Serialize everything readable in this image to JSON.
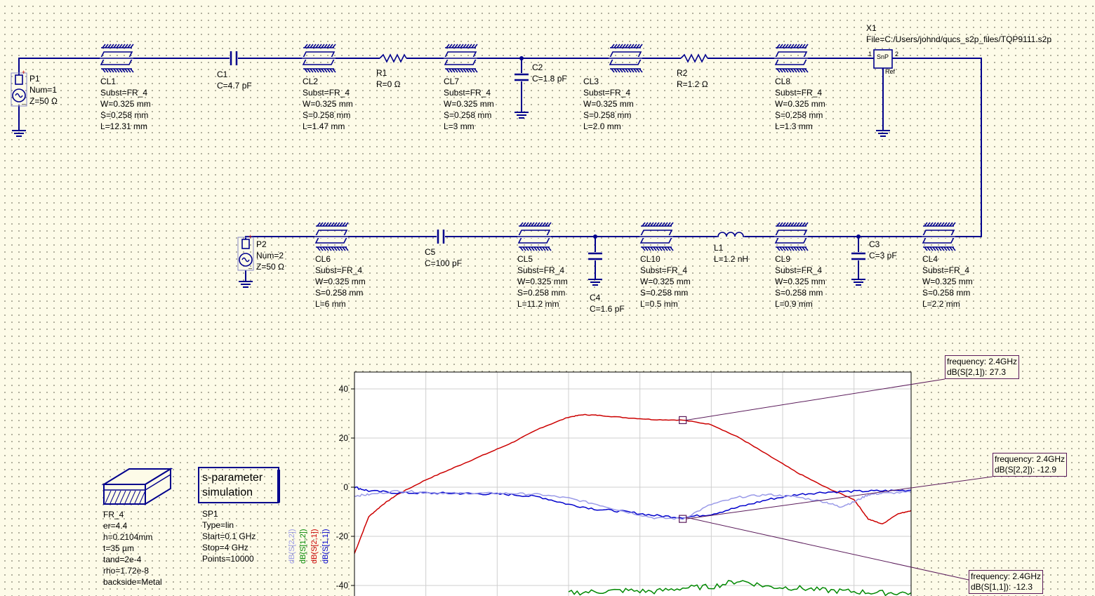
{
  "components": {
    "P1": {
      "name": "P1",
      "props": [
        "Num=1",
        "Z=50 Ω"
      ]
    },
    "CL1": {
      "name": "CL1",
      "props": [
        "Subst=FR_4",
        "W=0.325 mm",
        "S=0.258 mm",
        "L=12.31 mm"
      ]
    },
    "C1": {
      "name": "C1",
      "props": [
        "C=4.7 pF"
      ]
    },
    "CL2": {
      "name": "CL2",
      "props": [
        "Subst=FR_4",
        "W=0.325 mm",
        "S=0.258 mm",
        "L=1.47 mm"
      ]
    },
    "R1": {
      "name": "R1",
      "props": [
        "R=0  Ω"
      ]
    },
    "CL7": {
      "name": "CL7",
      "props": [
        "Subst=FR_4",
        "W=0.325 mm",
        "S=0.258 mm",
        "L=3 mm"
      ]
    },
    "C2": {
      "name": "C2",
      "props": [
        "C=1.8 pF"
      ]
    },
    "CL3": {
      "name": "CL3",
      "props": [
        "Subst=FR_4",
        "W=0.325 mm",
        "S=0.258 mm",
        "L=2.0 mm"
      ]
    },
    "R2": {
      "name": "R2",
      "props": [
        "R=1.2  Ω"
      ]
    },
    "CL8": {
      "name": "CL8",
      "props": [
        "Subst=FR_4",
        "W=0.325 mm",
        "S=0.258 mm",
        "L=1.3 mm"
      ]
    },
    "X1": {
      "name": "X1",
      "props": [
        "File=C:/Users/johnd/qucs_s2p_files/TQP9111.s2p"
      ],
      "symbol": "SnP",
      "ref": "Ref",
      "pin1": "1",
      "pin2": "2"
    },
    "P2": {
      "name": "P2",
      "props": [
        "Num=2",
        "Z=50 Ω"
      ]
    },
    "CL6": {
      "name": "CL6",
      "props": [
        "Subst=FR_4",
        "W=0.325 mm",
        "S=0.258 mm",
        "L=6 mm"
      ]
    },
    "C5": {
      "name": "C5",
      "props": [
        "C=100 pF"
      ]
    },
    "CL5": {
      "name": "CL5",
      "props": [
        "Subst=FR_4",
        "W=0.325 mm",
        "S=0.258 mm",
        "L=11.2 mm"
      ]
    },
    "C4": {
      "name": "C4",
      "props": [
        "C=1.6 pF"
      ]
    },
    "CL10": {
      "name": "CL10",
      "props": [
        "Subst=FR_4",
        "W=0.325 mm",
        "S=0.258 mm",
        "L=0.5 mm"
      ]
    },
    "L1": {
      "name": "L1",
      "props": [
        "L=1.2 nH"
      ]
    },
    "CL9": {
      "name": "CL9",
      "props": [
        "Subst=FR_4",
        "W=0.325 mm",
        "S=0.258 mm",
        "L=0.9 mm"
      ]
    },
    "C3": {
      "name": "C3",
      "props": [
        "C=3 pF"
      ]
    },
    "CL4": {
      "name": "CL4",
      "props": [
        "Subst=FR_4",
        "W=0.325 mm",
        "S=0.258 mm",
        "L=2.2 mm"
      ]
    },
    "FR_4": {
      "name": "FR_4",
      "props": [
        "er=4.4",
        "h=0.2104mm",
        "t=35 µm",
        "tand=2e-4",
        "rho=1.72e-8",
        "backside=Metal"
      ]
    },
    "SP1": {
      "name": "SP1",
      "props": [
        "Type=lin",
        "Start=0.1 GHz",
        "Stop=4 GHz",
        "Points=10000"
      ],
      "title": [
        "s-parameter",
        "simulation"
      ]
    }
  },
  "markers": [
    {
      "line1": "frequency: 2.4GHz",
      "line2": "dB(S[2,1]): 27.3"
    },
    {
      "line1": "frequency: 2.4GHz",
      "line2": "dB(S[2,2]): -12.9"
    },
    {
      "line1": "frequency: 2.4GHz",
      "line2": "dB(S[1,1]): -12.3"
    }
  ],
  "colors": {
    "wire": "#00008c",
    "s21": "#cc0000",
    "s11": "#0000cc",
    "s22": "#9a9ae8",
    "s12": "#008800",
    "grid": "#cfcfcf",
    "marker_line": "#5a1a5a"
  },
  "chart_data": {
    "type": "line",
    "xlabel": "",
    "ylabel": "",
    "xlim": [
      0.1,
      4
    ],
    "ylim": [
      -40,
      45
    ],
    "yticks": [
      40,
      20,
      0,
      -20,
      -40
    ],
    "legend": [
      "dB(S[2,2])",
      "dB(S[1,2])",
      "dB(S[2,1])",
      "dB(S[1,1])"
    ],
    "series": [
      {
        "name": "dB(S[2,1])",
        "color": "#cc0000",
        "x": [
          0.1,
          0.2,
          0.3,
          0.4,
          0.6,
          0.8,
          1.0,
          1.2,
          1.4,
          1.6,
          1.7,
          1.8,
          2.0,
          2.2,
          2.4,
          2.6,
          2.8,
          3.0,
          3.2,
          3.4,
          3.6,
          3.7,
          3.8,
          3.9,
          4.0
        ],
        "y": [
          -27,
          -12,
          -7,
          -3,
          3,
          8,
          13,
          18,
          24,
          28.5,
          29.5,
          29.3,
          28.3,
          27.5,
          27.3,
          25.5,
          20,
          13,
          6,
          0,
          -5,
          -13,
          -15,
          -11,
          -9.5
        ]
      },
      {
        "name": "dB(S[1,1])",
        "color": "#0000cc",
        "x": [
          0.1,
          0.2,
          0.4,
          0.6,
          0.8,
          1.0,
          1.2,
          1.4,
          1.6,
          1.8,
          2.0,
          2.2,
          2.4,
          2.6,
          2.8,
          3.0,
          3.2,
          3.4,
          3.6,
          3.8,
          4.0
        ],
        "y": [
          0,
          -1.5,
          -2.3,
          -2.4,
          -2.5,
          -2.7,
          -3,
          -4,
          -7,
          -9,
          -10,
          -11.5,
          -12.3,
          -11,
          -8,
          -5,
          -3,
          -2,
          -1.7,
          -1.5,
          -1.2
        ]
      },
      {
        "name": "dB(S[2,2])",
        "color": "#9a9ae8",
        "x": [
          0.1,
          0.2,
          0.4,
          0.6,
          0.8,
          1.0,
          1.2,
          1.4,
          1.6,
          1.8,
          2.0,
          2.2,
          2.4,
          2.6,
          2.8,
          3.0,
          3.2,
          3.4,
          3.5,
          3.6,
          3.7,
          3.8,
          4.0
        ],
        "y": [
          -3.5,
          -3,
          -1.5,
          -2,
          -2.5,
          -2.5,
          -2.5,
          -3,
          -4.5,
          -7,
          -10,
          -12.5,
          -12.9,
          -7,
          -4,
          -3,
          -4,
          -6,
          -8,
          -6,
          -3,
          -2.5,
          -2
        ]
      },
      {
        "name": "dB(S[1,2])",
        "color": "#008800",
        "x": [
          1.6,
          1.8,
          2.0,
          2.2,
          2.4,
          2.6,
          2.8,
          3.0,
          3.2,
          3.4,
          3.6,
          3.8,
          4.0
        ],
        "y": [
          -43,
          -42.5,
          -42,
          -42.5,
          -41,
          -40.5,
          -38,
          -40.5,
          -41,
          -42,
          -42.5,
          -43,
          -43
        ]
      }
    ]
  }
}
